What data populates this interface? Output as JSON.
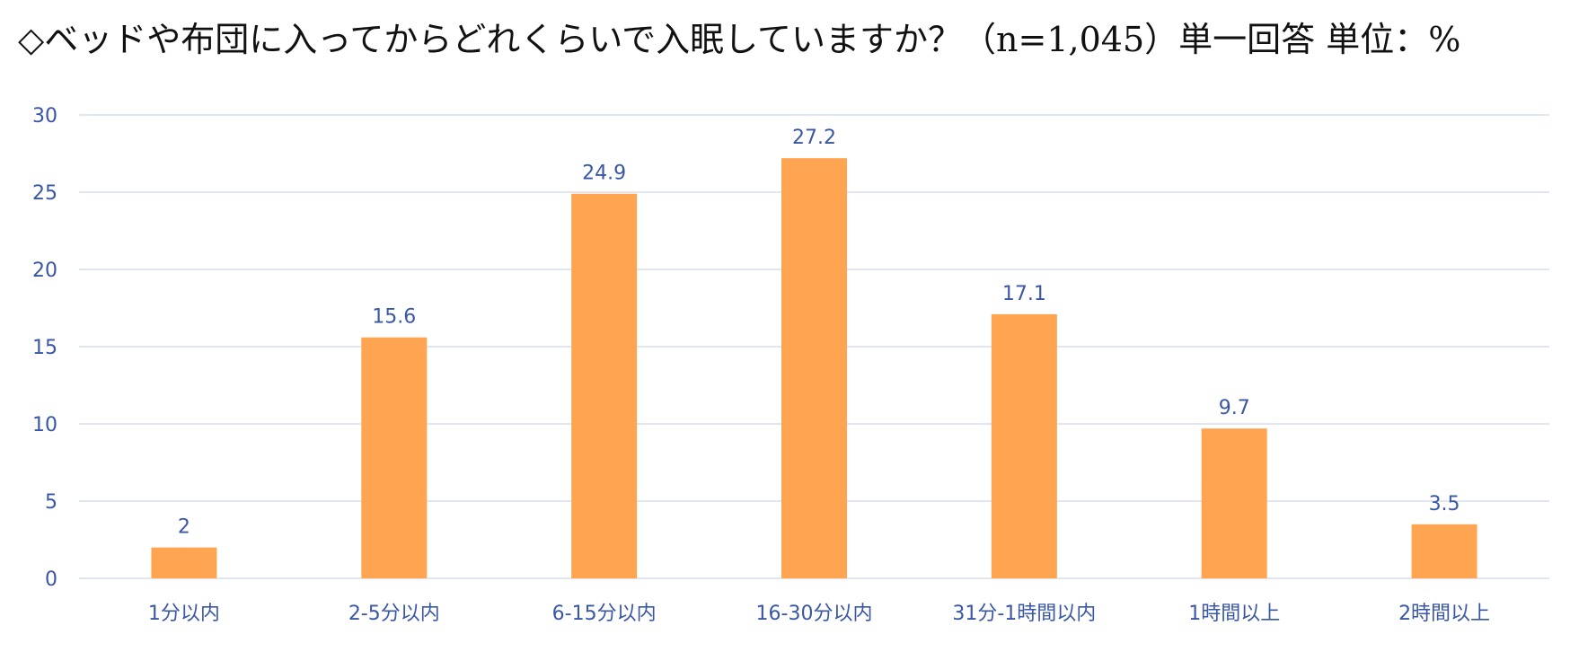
{
  "title": "◇ベッドや布団に入ってからどれくらいで入眠していますか？（n=1,045）単一回答 単位：%",
  "chart_data": {
    "type": "bar",
    "title": "◇ベッドや布団に入ってからどれくらいで入眠していますか？（n=1,045）単一回答 単位：%",
    "categories": [
      "1分以内",
      "2-5分以内",
      "6-15分以内",
      "16-30分以内",
      "31分-1時間以内",
      "1時間以上",
      "2時間以上"
    ],
    "values": [
      2,
      15.6,
      24.9,
      27.2,
      17.1,
      9.7,
      3.5
    ],
    "value_labels": [
      "2",
      "15.6",
      "24.9",
      "27.2",
      "17.1",
      "9.7",
      "3.5"
    ],
    "yticks": [
      "0",
      "5",
      "10",
      "15",
      "20",
      "25",
      "30"
    ],
    "ylim": [
      0,
      30
    ],
    "xlabel": "",
    "ylabel": "",
    "grid": true,
    "legend": "none",
    "colors": {
      "bar": "#ffa552",
      "text": "#3a57a5",
      "grid": "#d5dcef"
    }
  }
}
